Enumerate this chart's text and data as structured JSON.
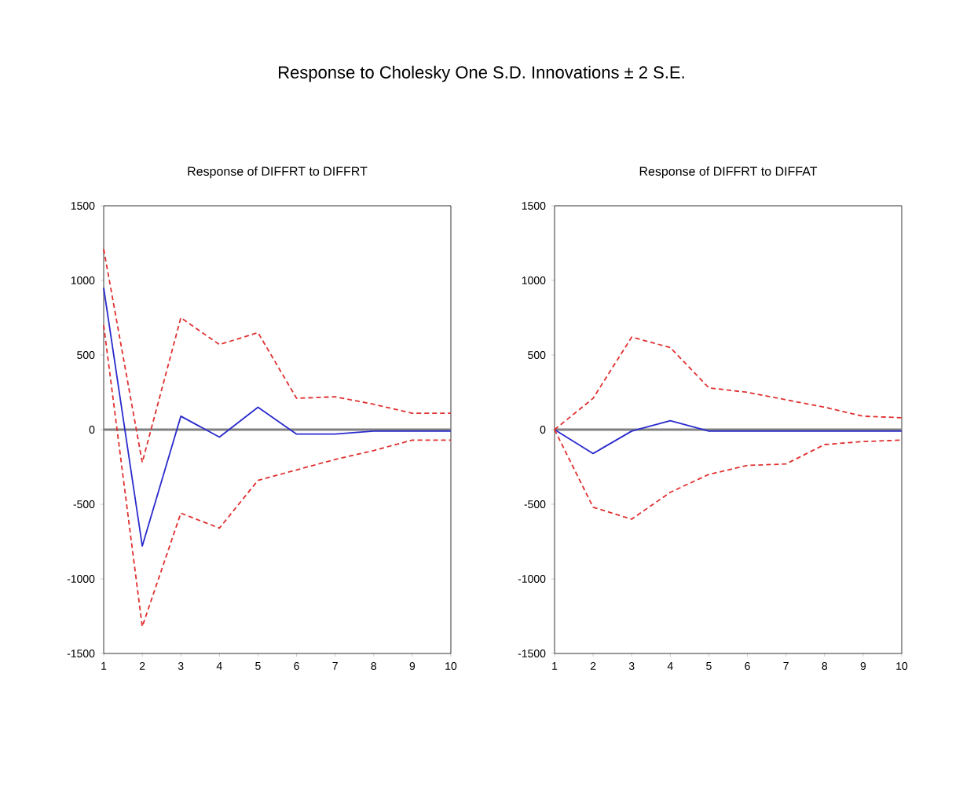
{
  "chart_data": [
    {
      "type": "other",
      "title": "Response to Cholesky One S.D. Innovations ± 2 S.E."
    },
    {
      "type": "line",
      "title": "Response of DIFFRT to DIFFRT",
      "x": [
        1,
        2,
        3,
        4,
        5,
        6,
        7,
        8,
        9,
        10
      ],
      "xlim": [
        1,
        10
      ],
      "xticks": [
        1,
        2,
        3,
        4,
        5,
        6,
        7,
        8,
        9,
        10
      ],
      "ylim": [
        -1500,
        1500
      ],
      "yticks": [
        -1500,
        -1000,
        -500,
        0,
        500,
        1000,
        1500
      ],
      "ref_lines": [
        {
          "axis": "y",
          "value": 0,
          "color": "#808080"
        }
      ],
      "series": [
        {
          "color": "#2a2acc",
          "line_style": "solid",
          "values": [
            950,
            -780,
            90,
            -50,
            150,
            -30,
            -30,
            -10,
            -10,
            -10
          ]
        },
        {
          "color": "#e03030",
          "line_style": "dashed",
          "values": [
            1210,
            -220,
            750,
            570,
            650,
            210,
            220,
            170,
            110,
            110
          ]
        },
        {
          "color": "#e03030",
          "line_style": "dashed",
          "values": [
            700,
            -1320,
            -560,
            -660,
            -340,
            -270,
            -200,
            -140,
            -70,
            -70
          ]
        }
      ]
    },
    {
      "type": "line",
      "title": "Response of DIFFRT to DIFFAT",
      "x": [
        1,
        2,
        3,
        4,
        5,
        6,
        7,
        8,
        9,
        10
      ],
      "xlim": [
        1,
        10
      ],
      "xticks": [
        1,
        2,
        3,
        4,
        5,
        6,
        7,
        8,
        9,
        10
      ],
      "ylim": [
        -1500,
        1500
      ],
      "yticks": [
        -1500,
        -1000,
        -500,
        0,
        500,
        1000,
        1500
      ],
      "ref_lines": [
        {
          "axis": "y",
          "value": 0,
          "color": "#808080"
        }
      ],
      "series": [
        {
          "color": "#2a2acc",
          "line_style": "solid",
          "values": [
            0,
            -160,
            -10,
            60,
            -10,
            -10,
            -10,
            -10,
            -10,
            -10
          ]
        },
        {
          "color": "#e03030",
          "line_style": "dashed",
          "values": [
            0,
            210,
            620,
            550,
            280,
            250,
            200,
            150,
            90,
            80
          ]
        },
        {
          "color": "#e03030",
          "line_style": "dashed",
          "values": [
            0,
            -520,
            -600,
            -420,
            -300,
            -240,
            -230,
            -100,
            -80,
            -70
          ]
        }
      ]
    }
  ]
}
